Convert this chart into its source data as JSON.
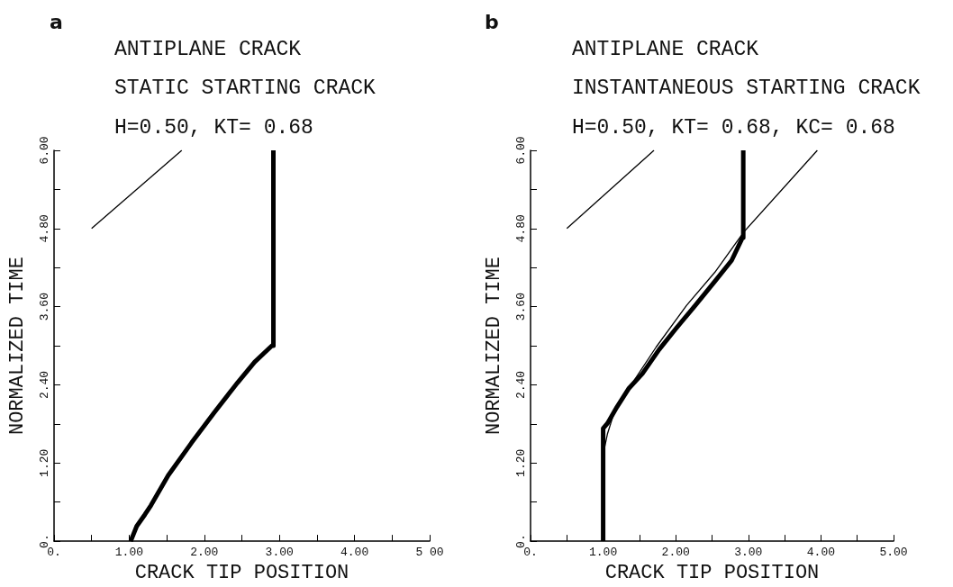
{
  "chart_data": [
    {
      "type": "line",
      "title": "ANTIPLANE CRACK",
      "subtitle": "STATIC STARTING CRACK",
      "annotations": [
        "a",
        "H=0.50, KT= 0.68"
      ],
      "xlabel": "CRACK TIP POSITION",
      "ylabel": "NORMALIZED TIME",
      "xlim": [
        0,
        5
      ],
      "xticks": [
        {
          "value": 0,
          "label": "0."
        },
        {
          "value": 0.5,
          "label": null
        },
        {
          "value": 1,
          "label": "1.00"
        },
        {
          "value": 1.5,
          "label": null
        },
        {
          "value": 2,
          "label": "2.00"
        },
        {
          "value": 2.5,
          "label": null
        },
        {
          "value": 3,
          "label": "3.00"
        },
        {
          "value": 3.5,
          "label": null
        },
        {
          "value": 4,
          "label": "4.00"
        },
        {
          "value": 4.5,
          "label": null
        },
        {
          "value": 5,
          "label": "5 00"
        }
      ],
      "ylim": [
        0,
        6
      ],
      "yticks": [
        {
          "value": 0,
          "label": "0."
        },
        {
          "value": 0.6,
          "label": null
        },
        {
          "value": 1.2,
          "label": "1.20"
        },
        {
          "value": 1.8,
          "label": null
        },
        {
          "value": 2.4,
          "label": "2.40"
        },
        {
          "value": 3,
          "label": null
        },
        {
          "value": 3.6,
          "label": "3.60"
        },
        {
          "value": 4.2,
          "label": null
        },
        {
          "value": 4.8,
          "label": "4.80"
        },
        {
          "value": 5.4,
          "label": null
        },
        {
          "value": 6,
          "label": "6.00"
        }
      ],
      "marker": "none",
      "line_style": "solid",
      "series": [
        {
          "color": "#000000",
          "x": [
            1.02,
            1.1,
            1.21,
            1.29,
            1.52,
            1.83,
            2.13,
            2.44,
            2.67,
            2.9,
            2.92,
            2.92
          ],
          "values": [
            0,
            0.23,
            0.41,
            0.55,
            1.01,
            1.51,
            1.97,
            2.43,
            2.75,
            3.0,
            3.0,
            6.0
          ]
        },
        {
          "color": "#000000",
          "x": [
            0.5,
            1.7
          ],
          "values": [
            4.8,
            6.0
          ]
        }
      ]
    },
    {
      "type": "line",
      "title": "ANTIPLANE CRACK",
      "subtitle": "INSTANTANEOUS STARTING CRACK",
      "annotations": [
        "b",
        "H=0.50, KT= 0.68, KC= 0.68"
      ],
      "xlabel": "CRACK TIP POSITION",
      "ylabel": "NORMALIZED TIME",
      "xlim": [
        0,
        5
      ],
      "xticks": [
        {
          "value": 0,
          "label": "0."
        },
        {
          "value": 0.5,
          "label": null
        },
        {
          "value": 1,
          "label": "1.00"
        },
        {
          "value": 1.5,
          "label": null
        },
        {
          "value": 2,
          "label": "2.00"
        },
        {
          "value": 2.5,
          "label": null
        },
        {
          "value": 3,
          "label": "3.00"
        },
        {
          "value": 3.5,
          "label": null
        },
        {
          "value": 4,
          "label": "4.00"
        },
        {
          "value": 4.5,
          "label": null
        },
        {
          "value": 5,
          "label": "5.00"
        }
      ],
      "ylim": [
        0,
        6
      ],
      "yticks": [
        {
          "value": 0,
          "label": "0."
        },
        {
          "value": 0.6,
          "label": null
        },
        {
          "value": 1.2,
          "label": "1.20"
        },
        {
          "value": 1.8,
          "label": null
        },
        {
          "value": 2.4,
          "label": "2.40"
        },
        {
          "value": 3,
          "label": null
        },
        {
          "value": 3.6,
          "label": "3.60"
        },
        {
          "value": 4.2,
          "label": null
        },
        {
          "value": 4.8,
          "label": "4.80"
        },
        {
          "value": 5.4,
          "label": null
        },
        {
          "value": 6,
          "label": "6.00"
        }
      ],
      "marker": "none",
      "line_style": "solid",
      "series": [
        {
          "color": "#000000",
          "x": [
            1.0,
            1.0,
            1.06,
            1.19,
            1.35,
            1.54,
            1.77,
            2.0,
            2.27,
            2.54,
            2.77,
            2.92,
            2.93,
            2.93
          ],
          "values": [
            0,
            1.73,
            1.81,
            2.06,
            2.34,
            2.57,
            2.94,
            3.26,
            3.62,
            3.99,
            4.31,
            4.66,
            4.66,
            6.0
          ]
        },
        {
          "color": "#000000",
          "x": [
            1.0,
            1.0,
            1.06,
            1.15,
            1.35,
            1.73,
            2.15,
            2.54,
            2.94,
            3.95
          ],
          "values": [
            0,
            1.33,
            1.65,
            1.97,
            2.34,
            2.98,
            3.62,
            4.13,
            4.75,
            6.0
          ]
        },
        {
          "color": "#000000",
          "x": [
            0.5,
            1.7
          ],
          "values": [
            4.8,
            6.0
          ]
        }
      ]
    }
  ]
}
